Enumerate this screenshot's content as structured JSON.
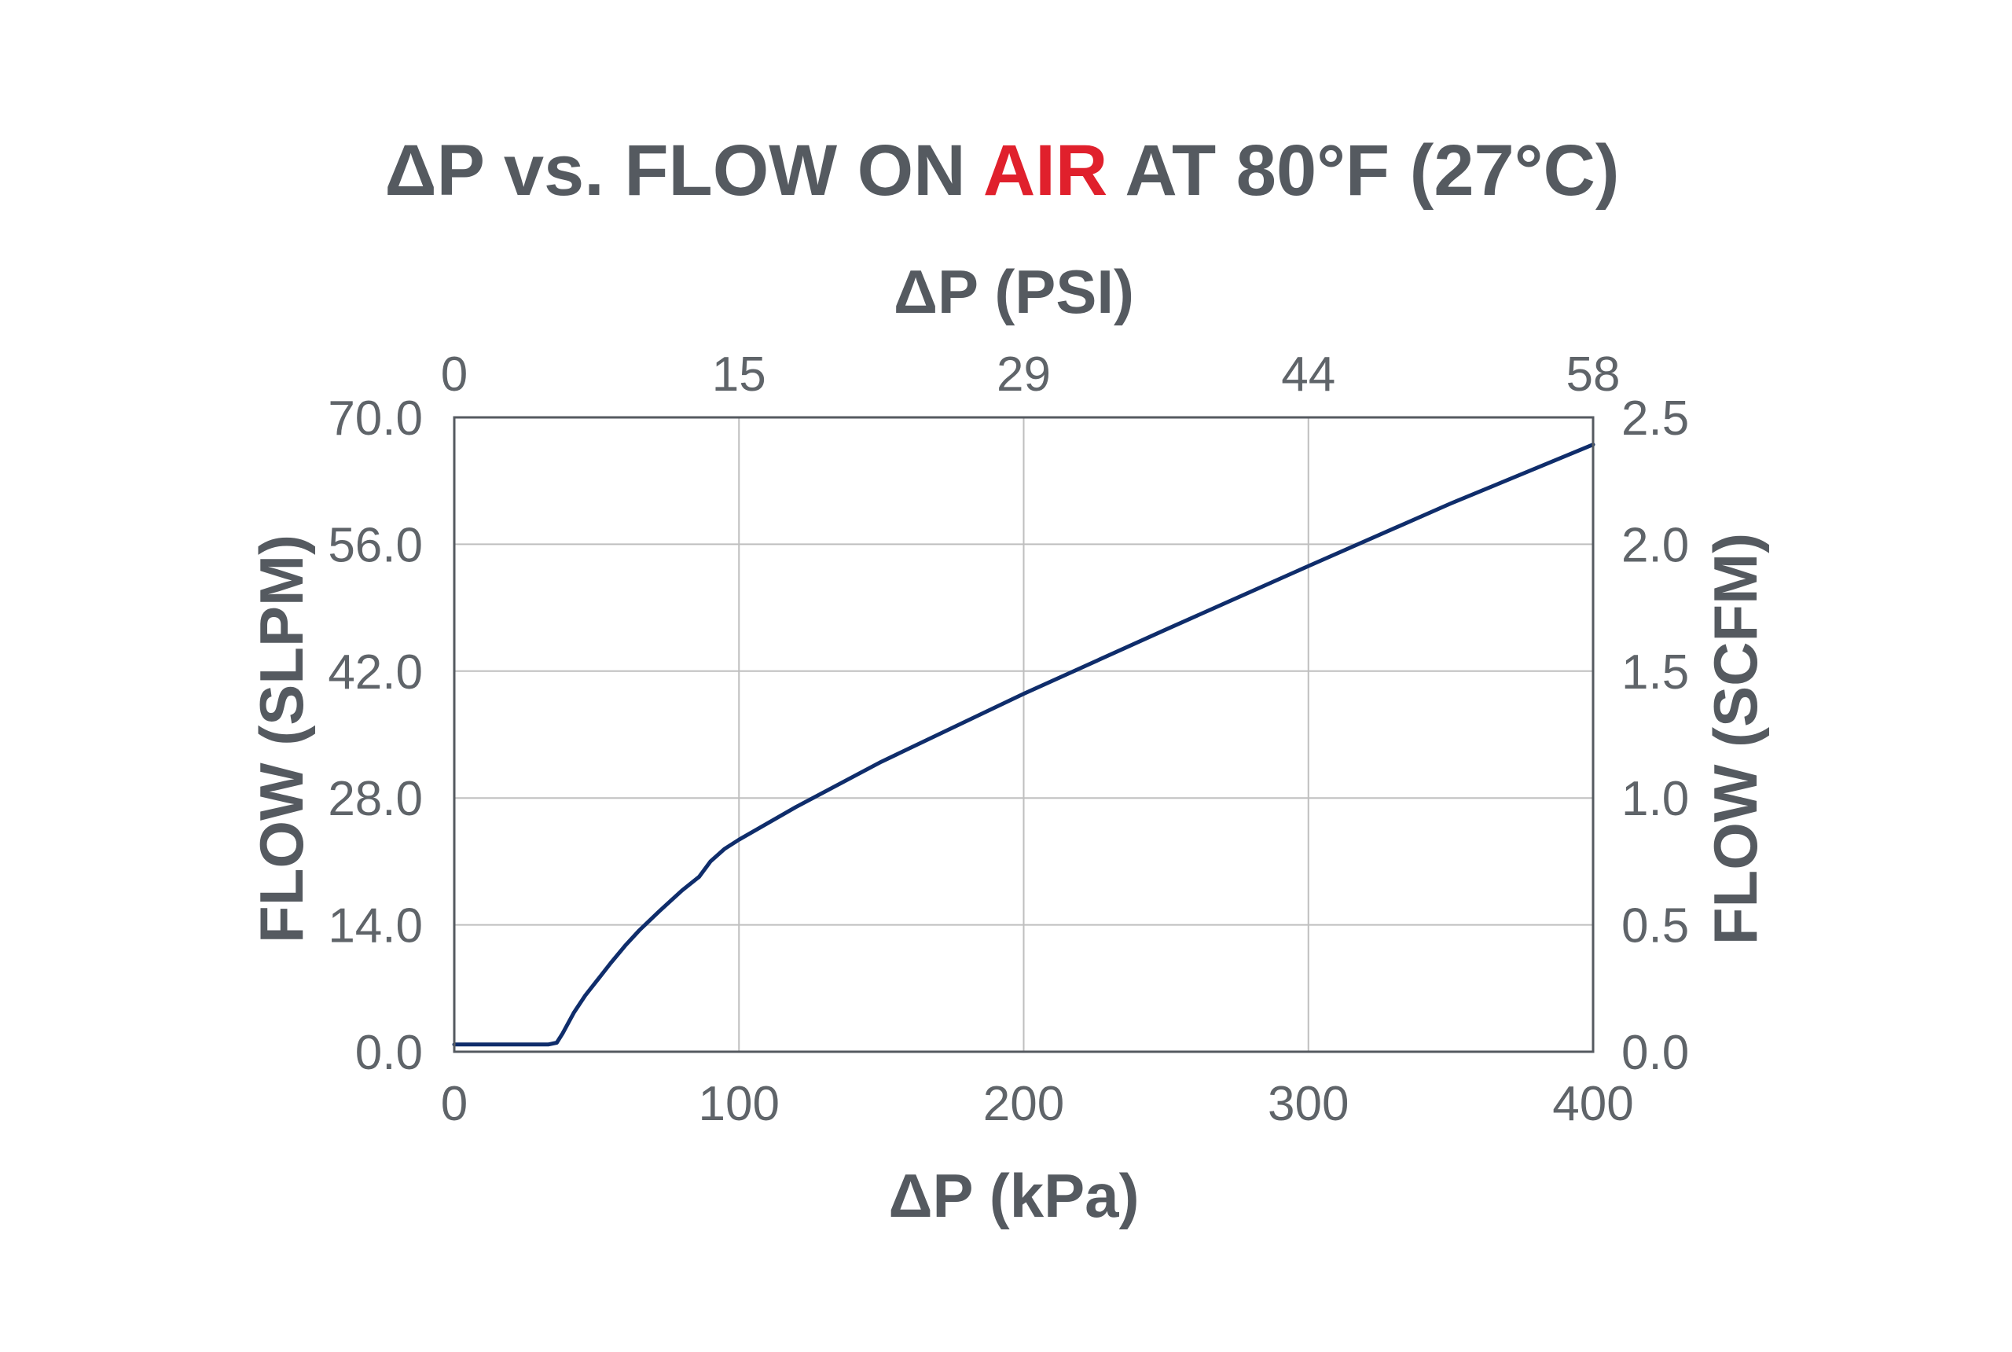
{
  "chart_data": {
    "type": "line",
    "title": {
      "prefix": "ΔP vs. FLOW ON ",
      "highlight": "AIR",
      "suffix": " AT 80°F (27°C)"
    },
    "xlabel": "ΔP (kPa)",
    "x2label": "ΔP (PSI)",
    "ylabel": "FLOW (SLPM)",
    "y2label": "FLOW (SCFM)",
    "xlim": [
      0,
      400
    ],
    "ylim": [
      0,
      70
    ],
    "y2lim": [
      0,
      2.5
    ],
    "x_ticks": [
      "0",
      "100",
      "200",
      "300",
      "400"
    ],
    "x_tick_values": [
      0,
      100,
      200,
      300,
      400
    ],
    "x2_ticks": [
      "0",
      "15",
      "29",
      "44",
      "58"
    ],
    "x2_tick_values": [
      0,
      100,
      200,
      300,
      400
    ],
    "y_ticks": [
      "0.0",
      "14.0",
      "28.0",
      "42.0",
      "56.0",
      "70.0"
    ],
    "y_tick_values": [
      0,
      14,
      28,
      42,
      56,
      70
    ],
    "y2_ticks": [
      "0.0",
      "0.5",
      "1.0",
      "1.5",
      "2.0",
      "2.5"
    ],
    "y2_tick_values": [
      0,
      14,
      28,
      42,
      56,
      70
    ],
    "grid": true,
    "series": [
      {
        "x": [
          0,
          10,
          20,
          29,
          33,
          36,
          38,
          42,
          46,
          50,
          55,
          60,
          65,
          72,
          80,
          86,
          90,
          95,
          100,
          120,
          150,
          200,
          250,
          300,
          350,
          400
        ],
        "y": [
          0.8,
          0.8,
          0.8,
          0.8,
          0.8,
          1.0,
          2.0,
          4.3,
          6.2,
          7.8,
          9.8,
          11.7,
          13.4,
          15.5,
          17.8,
          19.3,
          21.0,
          22.4,
          23.4,
          27.0,
          32.0,
          39.5,
          46.6,
          53.6,
          60.5,
          67.0
        ],
        "color": "#0f2d6b"
      }
    ]
  }
}
